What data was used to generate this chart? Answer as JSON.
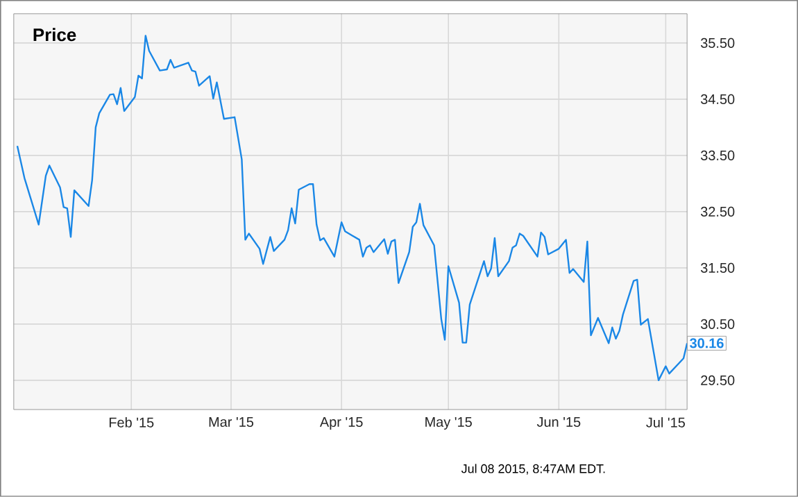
{
  "chart_data": {
    "type": "line",
    "title": "Price",
    "x": [
      "2014-12-31",
      "2015-01-02",
      "2015-01-06",
      "2015-01-08",
      "2015-01-09",
      "2015-01-12",
      "2015-01-13",
      "2015-01-14",
      "2015-01-15",
      "2015-01-16",
      "2015-01-20",
      "2015-01-21",
      "2015-01-22",
      "2015-01-23",
      "2015-01-26",
      "2015-01-27",
      "2015-01-28",
      "2015-01-29",
      "2015-01-30",
      "2015-02-02",
      "2015-02-03",
      "2015-02-04",
      "2015-02-05",
      "2015-02-06",
      "2015-02-09",
      "2015-02-11",
      "2015-02-12",
      "2015-02-13",
      "2015-02-17",
      "2015-02-18",
      "2015-02-19",
      "2015-02-20",
      "2015-02-23",
      "2015-02-24",
      "2015-02-25",
      "2015-02-27",
      "2015-03-02",
      "2015-03-04",
      "2015-03-05",
      "2015-03-06",
      "2015-03-09",
      "2015-03-10",
      "2015-03-12",
      "2015-03-13",
      "2015-03-16",
      "2015-03-17",
      "2015-03-18",
      "2015-03-19",
      "2015-03-20",
      "2015-03-23",
      "2015-03-24",
      "2015-03-25",
      "2015-03-26",
      "2015-03-27",
      "2015-03-30",
      "2015-04-01",
      "2015-04-02",
      "2015-04-06",
      "2015-04-07",
      "2015-04-08",
      "2015-04-09",
      "2015-04-10",
      "2015-04-13",
      "2015-04-14",
      "2015-04-15",
      "2015-04-16",
      "2015-04-17",
      "2015-04-20",
      "2015-04-21",
      "2015-04-22",
      "2015-04-23",
      "2015-04-24",
      "2015-04-27",
      "2015-04-29",
      "2015-04-30",
      "2015-05-01",
      "2015-05-04",
      "2015-05-05",
      "2015-05-06",
      "2015-05-07",
      "2015-05-11",
      "2015-05-12",
      "2015-05-13",
      "2015-05-14",
      "2015-05-15",
      "2015-05-18",
      "2015-05-19",
      "2015-05-20",
      "2015-05-21",
      "2015-05-22",
      "2015-05-26",
      "2015-05-27",
      "2015-05-28",
      "2015-05-29",
      "2015-06-01",
      "2015-06-03",
      "2015-06-04",
      "2015-06-05",
      "2015-06-08",
      "2015-06-09",
      "2015-06-10",
      "2015-06-12",
      "2015-06-15",
      "2015-06-16",
      "2015-06-17",
      "2015-06-18",
      "2015-06-19",
      "2015-06-22",
      "2015-06-23",
      "2015-06-24",
      "2015-06-26",
      "2015-06-29",
      "2015-07-01",
      "2015-07-02",
      "2015-07-06",
      "2015-07-07"
    ],
    "series": [
      {
        "color": "#1a87e6",
        "values": [
          33.67,
          33.1,
          32.27,
          33.14,
          33.32,
          32.93,
          32.58,
          32.56,
          32.05,
          32.88,
          32.6,
          33.06,
          34.0,
          34.25,
          34.58,
          34.59,
          34.41,
          34.7,
          34.29,
          34.54,
          34.92,
          34.87,
          35.63,
          35.36,
          35.01,
          35.03,
          35.2,
          35.06,
          35.15,
          35.01,
          34.99,
          34.74,
          34.91,
          34.51,
          34.8,
          34.15,
          34.18,
          33.43,
          32.0,
          32.11,
          31.84,
          31.57,
          32.05,
          31.8,
          32.0,
          32.17,
          32.56,
          32.29,
          32.89,
          32.99,
          32.99,
          32.27,
          31.99,
          32.03,
          31.7,
          32.31,
          32.15,
          32.0,
          31.7,
          31.86,
          31.9,
          31.78,
          32.01,
          31.75,
          31.97,
          32.0,
          31.23,
          31.78,
          32.23,
          32.31,
          32.64,
          32.26,
          31.9,
          30.59,
          30.22,
          31.53,
          30.88,
          30.17,
          30.17,
          30.85,
          31.62,
          31.35,
          31.49,
          32.03,
          31.35,
          31.62,
          31.86,
          31.9,
          32.11,
          32.07,
          31.7,
          32.13,
          32.05,
          31.74,
          31.84,
          32.0,
          31.41,
          31.48,
          31.25,
          31.97,
          30.3,
          30.61,
          30.16,
          30.44,
          30.24,
          30.38,
          30.67,
          31.27,
          31.29,
          30.49,
          30.59,
          29.5,
          29.75,
          29.62,
          29.89,
          30.16
        ],
        "value_labels": [
          null,
          null,
          null,
          null,
          null,
          null,
          null,
          null,
          null,
          null,
          null,
          null,
          null,
          null,
          null,
          null,
          null,
          null,
          null,
          null,
          null,
          null,
          null,
          null,
          null,
          null,
          null,
          null,
          null,
          null,
          null,
          null,
          null,
          null,
          null,
          null,
          null,
          null,
          null,
          null,
          null,
          null,
          null,
          null,
          null,
          null,
          null,
          null,
          null,
          null,
          null,
          null,
          null,
          null,
          null,
          null,
          null,
          null,
          null,
          null,
          null,
          null,
          null,
          null,
          null,
          null,
          null,
          null,
          null,
          null,
          null,
          null,
          null,
          null,
          null,
          null,
          null,
          null,
          null,
          null,
          null,
          null,
          null,
          null,
          null,
          null,
          null,
          null,
          null,
          null,
          null,
          null,
          null,
          null,
          null,
          null,
          null,
          null,
          null,
          null,
          null,
          null,
          null,
          null,
          null,
          null,
          null,
          null,
          null,
          null,
          null,
          null,
          null,
          null,
          null,
          "30.16"
        ]
      }
    ],
    "xlim": [
      "2014-12-30",
      "2015-07-07"
    ],
    "xticks": [
      {
        "value": "2015-02-01",
        "label": "Feb '15"
      },
      {
        "value": "2015-03-01",
        "label": "Mar '15"
      },
      {
        "value": "2015-04-01",
        "label": "Apr '15"
      },
      {
        "value": "2015-05-01",
        "label": "May '15"
      },
      {
        "value": "2015-06-01",
        "label": "Jun '15"
      },
      {
        "value": "2015-07-01",
        "label": "Jul '15"
      }
    ],
    "ylim": [
      28.98,
      36.02
    ],
    "yticks": [
      {
        "value": 29.5,
        "label": "29.50"
      },
      {
        "value": 30.5,
        "label": "30.50"
      },
      {
        "value": 31.5,
        "label": "31.50"
      },
      {
        "value": 32.5,
        "label": "32.50"
      },
      {
        "value": 33.5,
        "label": "33.50"
      },
      {
        "value": 34.5,
        "label": "34.50"
      },
      {
        "value": 35.5,
        "label": "35.50"
      }
    ],
    "grid": true,
    "marker": "none",
    "line_style": "solid",
    "annotations": [
      "Jul 08 2015, 8:47AM EDT."
    ]
  }
}
